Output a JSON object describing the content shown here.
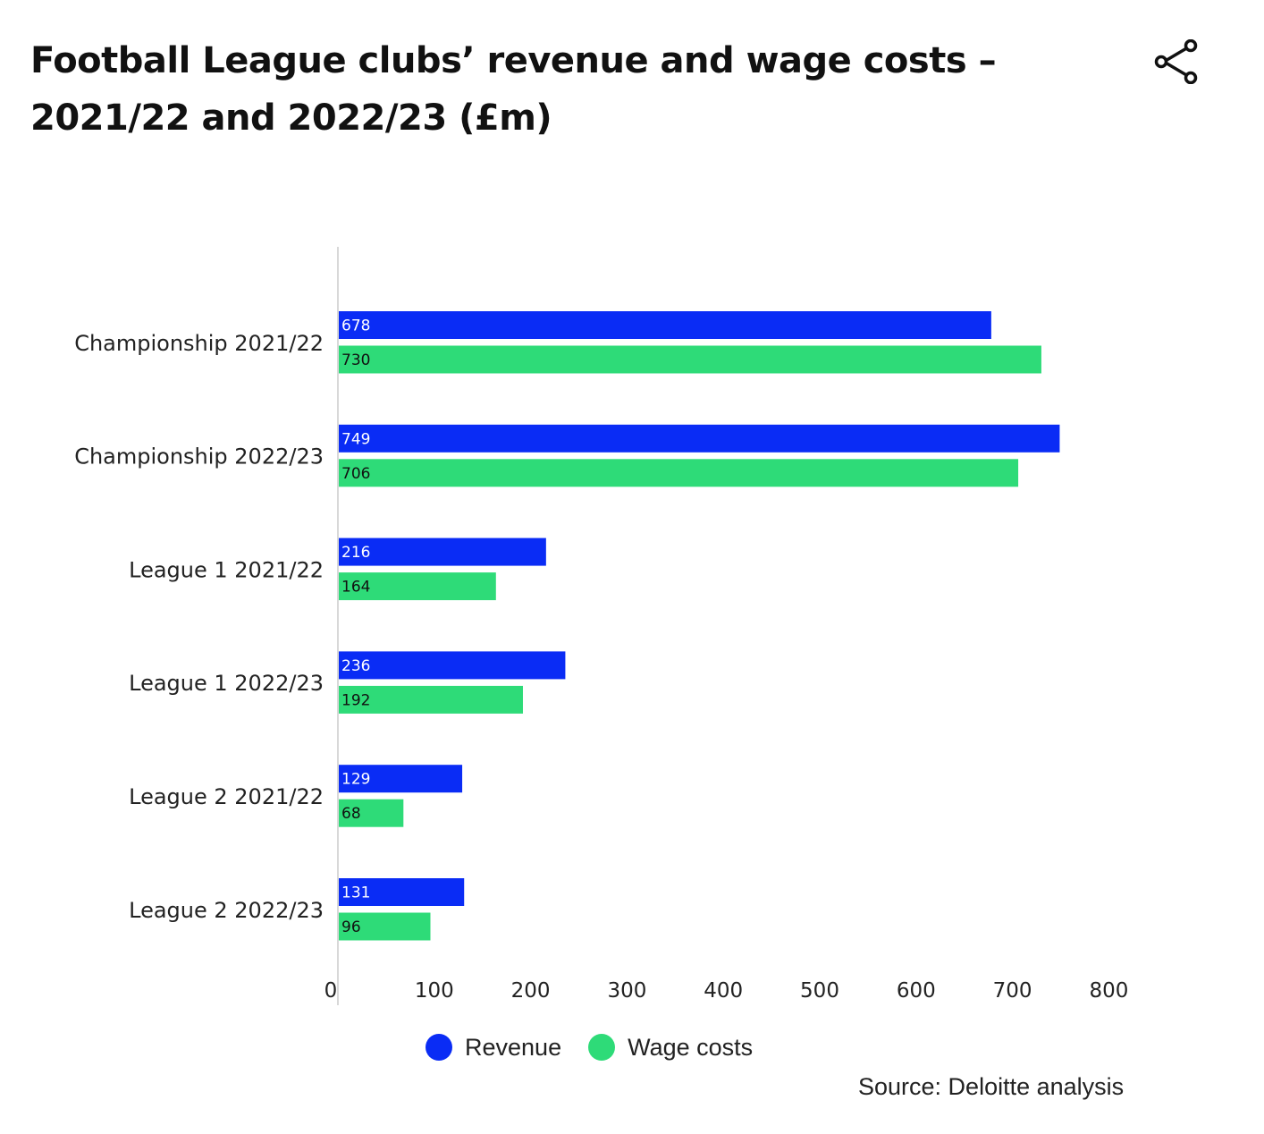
{
  "title_lines": [
    "Football League clubs’ revenue and wage costs –",
    "2021/22 and 2022/23 (£m)"
  ],
  "share_icon": "share-icon",
  "source": "Source: Deloitte analysis",
  "colors": {
    "revenue": "#0a2cf5",
    "wage_costs": "#2edb78",
    "axis": "#cccccc"
  },
  "chart_data": {
    "type": "bar",
    "orientation": "horizontal",
    "title": "Football League clubs’ revenue and wage costs – 2021/22 and 2022/23 (£m)",
    "categories": [
      "Championship 2021/22",
      "Championship 2022/23",
      "League 1 2021/22",
      "League 1 2022/23",
      "League 2 2021/22",
      "League 2 2022/23"
    ],
    "series": [
      {
        "name": "Revenue",
        "values": [
          678,
          749,
          216,
          236,
          129,
          131
        ]
      },
      {
        "name": "Wage costs",
        "values": [
          730,
          706,
          164,
          192,
          68,
          96
        ]
      }
    ],
    "xlim": [
      0,
      800
    ],
    "xticks": [
      0,
      100,
      200,
      300,
      400,
      500,
      600,
      700,
      800
    ],
    "grid": false,
    "legend_position": "bottom"
  }
}
